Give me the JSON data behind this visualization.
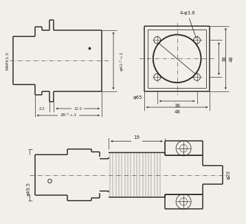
{
  "bg_color": "#f2efe9",
  "lc": "#2a2a2a",
  "dc": "#2a2a2a",
  "klw": 1.1,
  "tlw": 0.6,
  "dlw": 0.5,
  "top_left": {
    "note_holes": "4-φ3.6",
    "label_m4": "M4PX1.5",
    "label_phi41": "φ41-⁰₋₀.1",
    "label_22": "2.2",
    "label_125": "12.5",
    "label_28": "28-⁰₋₀.1"
  },
  "top_right": {
    "label_phi65": "φ65",
    "label_38h": "38",
    "label_48h": "48",
    "label_38v": "38",
    "label_48v": "48"
  },
  "bottom": {
    "label_19": "19",
    "label_phi495": "φ49.5",
    "label_phi20": "φ20"
  }
}
